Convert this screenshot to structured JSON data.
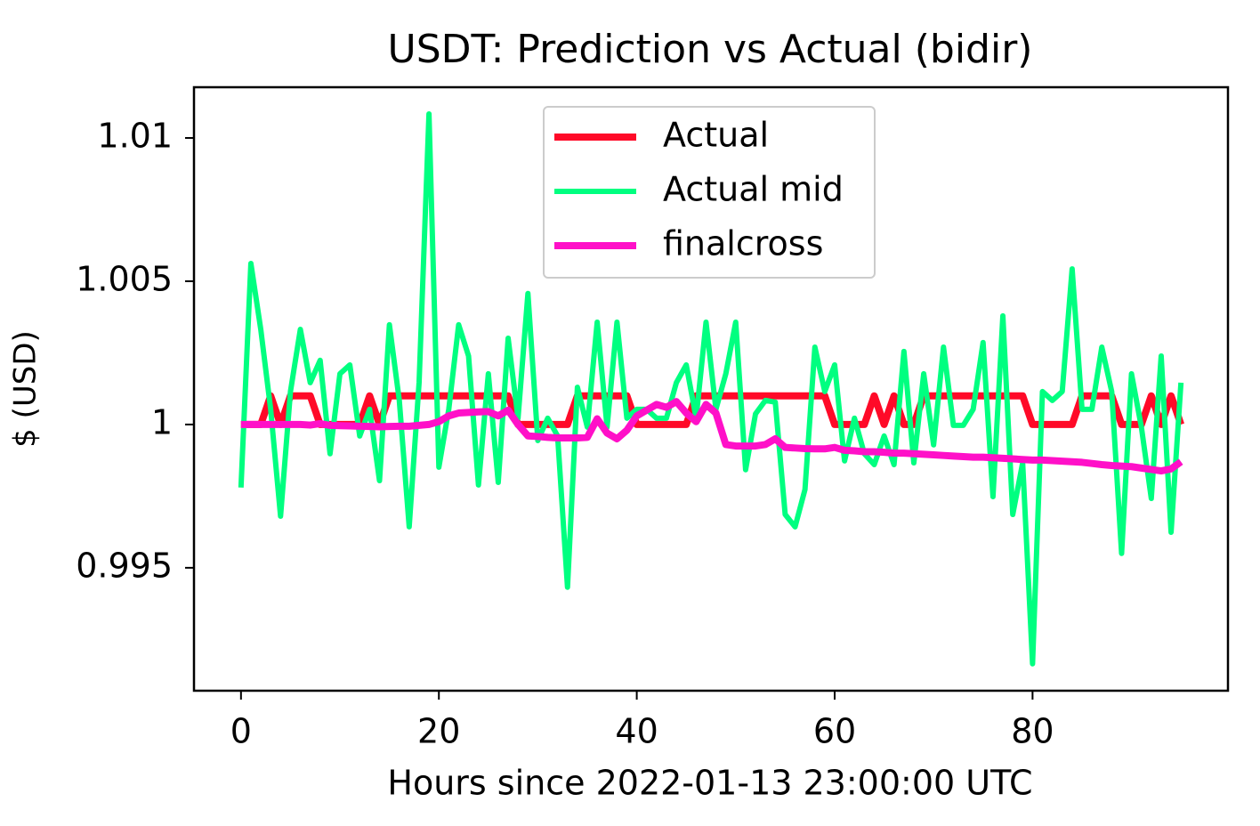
{
  "chart_data": {
    "type": "line",
    "title": "USDT: Prediction vs Actual (bidir)",
    "xlabel": "Hours since 2022-01-13 23:00:00 UTC",
    "ylabel": "$ (USD)",
    "x": [
      0,
      1,
      2,
      3,
      4,
      5,
      6,
      7,
      8,
      9,
      10,
      11,
      12,
      13,
      14,
      15,
      16,
      17,
      18,
      19,
      20,
      21,
      22,
      23,
      24,
      25,
      26,
      27,
      28,
      29,
      30,
      31,
      32,
      33,
      34,
      35,
      36,
      37,
      38,
      39,
      40,
      41,
      42,
      43,
      44,
      45,
      46,
      47,
      48,
      49,
      50,
      51,
      52,
      53,
      54,
      55,
      56,
      57,
      58,
      59,
      60,
      61,
      62,
      63,
      64,
      65,
      66,
      67,
      68,
      69,
      70,
      71,
      72,
      73,
      74,
      75,
      76,
      77,
      78,
      79,
      80,
      81,
      82,
      83,
      84,
      85,
      86,
      87,
      88,
      89,
      90,
      91,
      92,
      93,
      94,
      95
    ],
    "series": [
      {
        "name": "Actual",
        "color": "#ff0a28",
        "width": 8,
        "values": [
          1,
          1,
          1,
          1.001,
          1,
          1.001,
          1.001,
          1.001,
          1,
          1,
          1,
          1,
          1,
          1.001,
          1,
          1.001,
          1.001,
          1.001,
          1.001,
          1.001,
          1.001,
          1.001,
          1.001,
          1.001,
          1.001,
          1.001,
          1.001,
          1.001,
          1,
          1,
          1,
          1,
          1,
          1,
          1.001,
          1.001,
          1.001,
          1.001,
          1.001,
          1.001,
          1,
          1,
          1,
          1,
          1,
          1,
          1.001,
          1.001,
          1.001,
          1.001,
          1.001,
          1.001,
          1.001,
          1.001,
          1.001,
          1.001,
          1.001,
          1.001,
          1.001,
          1.001,
          1,
          1,
          1,
          1,
          1.001,
          1,
          1.001,
          1,
          1,
          1.001,
          1.001,
          1.001,
          1.001,
          1.001,
          1.001,
          1.001,
          1.001,
          1.001,
          1.001,
          1.001,
          1,
          1,
          1,
          1,
          1,
          1.001,
          1.001,
          1.001,
          1.001,
          1,
          1,
          1,
          1.001,
          1,
          1.001,
          1
        ]
      },
      {
        "name": "Actual mid",
        "color": "#00ff80",
        "width": 6,
        "values": [
          0.9978,
          1.00562,
          1.00332,
          1.00053,
          0.9968,
          1.00115,
          1.00332,
          1.00146,
          1.00224,
          0.99898,
          1.00177,
          1.00208,
          0.9996,
          1.00053,
          0.99804,
          1.00348,
          1.00084,
          0.99643,
          1.00146,
          1.01084,
          0.99851,
          1.00053,
          1.00348,
          1.00239,
          0.99789,
          1.00177,
          0.99798,
          1.00301,
          1.00022,
          1.00457,
          0.99944,
          1.00022,
          0.9996,
          0.99432,
          1.0013,
          0.99991,
          1.00357,
          0.99991,
          1.00357,
          1.00022,
          1.00053,
          1.00053,
          1.00022,
          1.00022,
          1.00146,
          1.00208,
          1.00022,
          1.00357,
          1.00053,
          1.00177,
          1.00357,
          0.99842,
          1.00037,
          1.00084,
          1.00078,
          0.99686,
          0.99643,
          0.99773,
          1.0027,
          1.00115,
          1.00208,
          0.99873,
          1.00022,
          0.99898,
          0.9986,
          0.9996,
          0.9986,
          1.00255,
          0.99866,
          1.00177,
          0.99929,
          1.0027,
          0.99997,
          0.99997,
          1.00053,
          1.00286,
          0.99748,
          1.00379,
          0.99686,
          0.99866,
          0.99165,
          1.00115,
          1.00084,
          1.00115,
          1.00543,
          1.00053,
          1.00053,
          1.0027,
          1.00115,
          0.9955,
          1.00177,
          0.99991,
          0.99742,
          1.00239,
          0.99624,
          1.00146
        ]
      },
      {
        "name": "finalcross",
        "color": "#ff10c8",
        "width": 8,
        "values": [
          1,
          1,
          1,
          1,
          1,
          1,
          1,
          0.99998,
          1.00003,
          0.99997,
          0.99996,
          0.99995,
          0.99994,
          0.99993,
          0.99992,
          0.99993,
          0.99994,
          0.99994,
          0.99997,
          1,
          1.0001,
          1.0003,
          1.0004,
          1.00042,
          1.00044,
          1.00045,
          1.0003,
          1.0005,
          1,
          0.9996,
          0.99958,
          0.99955,
          0.99953,
          0.99953,
          0.99953,
          0.99955,
          1.0002,
          0.9997,
          0.9995,
          0.9998,
          1.0003,
          1.0005,
          1.0007,
          1.0006,
          1.0008,
          1.0004,
          1.0001,
          1.0007,
          1.0004,
          0.9993,
          0.99925,
          0.99925,
          0.99925,
          0.9993,
          0.9995,
          0.9992,
          0.99918,
          0.99916,
          0.99915,
          0.99915,
          0.9992,
          0.9991,
          0.99908,
          0.99905,
          0.99905,
          0.99903,
          0.999,
          0.999,
          0.99898,
          0.99896,
          0.99894,
          0.99892,
          0.9989,
          0.99888,
          0.99886,
          0.99886,
          0.99884,
          0.99882,
          0.9988,
          0.99878,
          0.99876,
          0.99876,
          0.99874,
          0.99872,
          0.9987,
          0.99868,
          0.99864,
          0.9986,
          0.99857,
          0.99855,
          0.99853,
          0.99848,
          0.99843,
          0.99838,
          0.99845,
          0.9987
        ]
      }
    ],
    "xlim": [
      -4.75,
      99.75
    ],
    "xticks": [
      0,
      20,
      40,
      60,
      80
    ],
    "ylim": [
      0.99071,
      1.01177
    ],
    "yticks": [
      0.995,
      1,
      1.005,
      1.01
    ],
    "grid": false,
    "legend": "upper center"
  }
}
